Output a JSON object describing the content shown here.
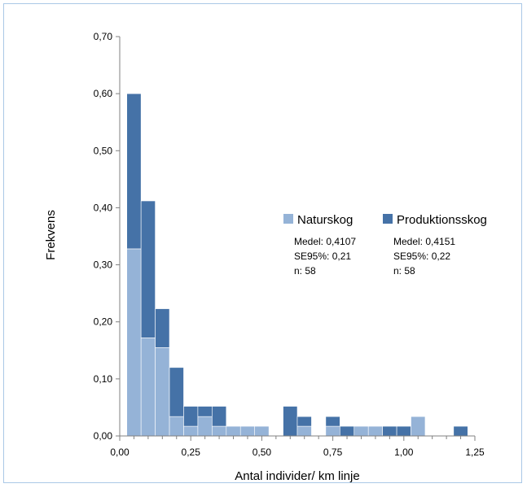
{
  "chart_data": {
    "type": "bar",
    "stacked": true,
    "xlabel": "Antal individer/ km linje",
    "ylabel": "Frekvens",
    "xlim": [
      0,
      1.25
    ],
    "ylim": [
      0,
      0.7
    ],
    "x_ticks": [
      "0,00",
      "0,25",
      "0,50",
      "0,75",
      "1,00",
      "1,25"
    ],
    "y_ticks": [
      "0,00",
      "0,10",
      "0,20",
      "0,30",
      "0,40",
      "0,50",
      "0,60",
      "0,70"
    ],
    "bin_width": 0.05,
    "bin_centers": [
      0.05,
      0.1,
      0.15,
      0.2,
      0.25,
      0.3,
      0.35,
      0.4,
      0.45,
      0.5,
      0.55,
      0.6,
      0.65,
      0.7,
      0.75,
      0.8,
      0.85,
      0.9,
      0.95,
      1.0,
      1.05,
      1.1,
      1.15,
      1.2
    ],
    "series": [
      {
        "name": "Naturskog",
        "color": "#95b3d7",
        "values": [
          0.328,
          0.172,
          0.155,
          0.034,
          0.017,
          0.034,
          0.017,
          0.017,
          0.017,
          0.017,
          0,
          0,
          0.017,
          0,
          0.017,
          0,
          0.017,
          0.017,
          0,
          0,
          0.034,
          0,
          0,
          0
        ]
      },
      {
        "name": "Produktionsskog",
        "color": "#4572a7",
        "values": [
          0.272,
          0.24,
          0.068,
          0.086,
          0.035,
          0.018,
          0.035,
          0,
          0,
          0,
          0,
          0.052,
          0.017,
          0,
          0.017,
          0.017,
          0,
          0,
          0.017,
          0.017,
          0,
          0,
          0,
          0.017
        ]
      }
    ],
    "legend": {
      "placement": "right",
      "items": [
        {
          "label": "Naturskog",
          "color": "#95b3d7",
          "stats": [
            "Medel: 0,4107",
            "SE95%: 0,21",
            "n: 58"
          ]
        },
        {
          "label": "Produktionsskog",
          "color": "#4572a7",
          "stats": [
            "Medel: 0,4151",
            "SE95%: 0,22",
            "n: 58"
          ]
        }
      ]
    },
    "grid": false
  }
}
